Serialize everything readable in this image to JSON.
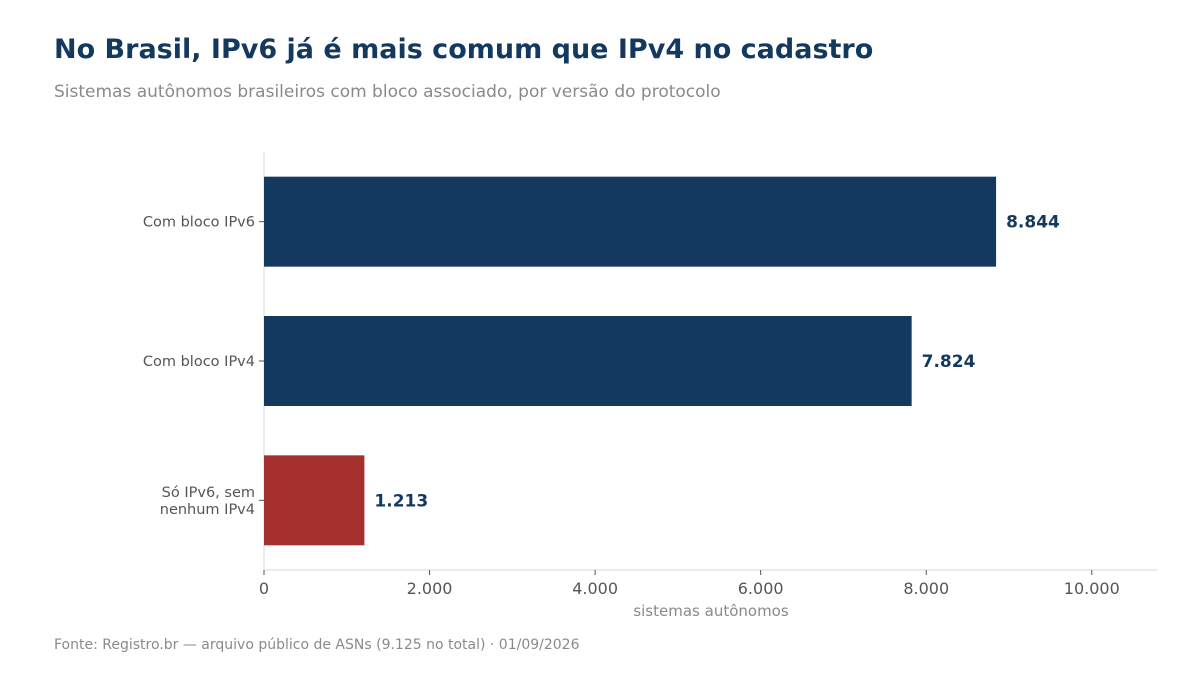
{
  "title": "No Brasil, IPv6 já é mais comum que IPv4 no cadastro",
  "subtitle": "Sistemas autônomos brasileiros com bloco associado, por versão do protocolo",
  "source": "Fonte: Registro.br — arquivo público de ASNs (9.125 no total) · 01/09/2026",
  "colors": {
    "primary": "#14395e",
    "highlight": "#a5312e",
    "axis": "#d9d9d9",
    "muted": "#8a8a8a"
  },
  "chart_data": {
    "type": "bar",
    "orientation": "horizontal",
    "categories": [
      [
        "Com bloco IPv6"
      ],
      [
        "Com bloco IPv4"
      ],
      [
        "Só IPv6, sem",
        "nenhum IPv4"
      ]
    ],
    "values": [
      8844,
      7824,
      1213
    ],
    "value_labels": [
      "8.844",
      "7.824",
      "1.213"
    ],
    "bar_colors": [
      "#14395e",
      "#14395e",
      "#a5312e"
    ],
    "xlabel": "sistemas autônomos",
    "ylabel": "",
    "xlim": [
      0,
      10800
    ],
    "xticks": [
      0,
      2000,
      4000,
      6000,
      8000,
      10000
    ],
    "xtick_labels": [
      "0",
      "2.000",
      "4.000",
      "6.000",
      "8.000",
      "10.000"
    ],
    "grid": false,
    "legend": "none"
  }
}
